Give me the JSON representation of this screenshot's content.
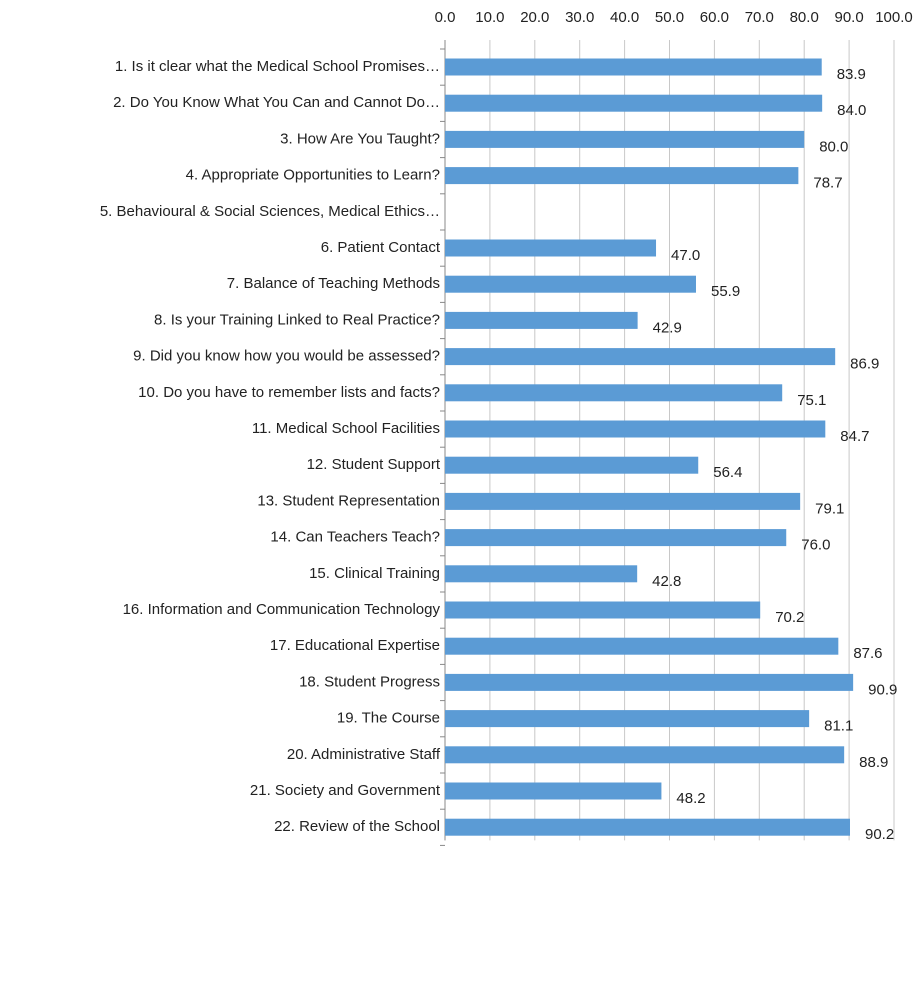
{
  "chart_data": {
    "type": "barh",
    "categories": [
      "1. Is it clear what the Medical School Promises…",
      "2. Do You Know What You Can and Cannot Do…",
      "3. How Are You Taught?",
      "4. Appropriate Opportunities to Learn?",
      "5. Behavioural & Social Sciences,  Medical Ethics…",
      "6. Patient Contact",
      "7. Balance of Teaching Methods",
      "8. Is your Training Linked to Real Practice?",
      "9. Did you know how you would be assessed?",
      "10. Do you have to remember lists and facts?",
      "11. Medical School Facilities",
      "12. Student Support",
      "13. Student Representation",
      "14. Can Teachers Teach?",
      "15. Clinical Training",
      "16. Information and Communication Technology",
      "17. Educational Expertise",
      "18. Student Progress",
      "19. The Course",
      "20. Administrative Staff",
      "21. Society and Government",
      "22. Review of the School"
    ],
    "values": [
      83.9,
      84.0,
      80.0,
      78.7,
      null,
      47.0,
      55.9,
      42.9,
      86.9,
      75.1,
      84.7,
      56.4,
      79.1,
      76.0,
      42.8,
      70.2,
      87.6,
      90.9,
      81.1,
      88.9,
      48.2,
      90.2
    ],
    "value_labels": [
      "83.9",
      "84.0",
      "80.0",
      "78.7",
      null,
      "47.0",
      "55.9",
      "42.9",
      "86.9",
      "75.1",
      "84.7",
      "56.4",
      "79.1",
      "76.0",
      "42.8",
      "70.2",
      "87.6",
      "90.9",
      "81.1",
      "88.9",
      "48.2",
      "90.2"
    ],
    "color": "#5b9bd5",
    "xlim": [
      0,
      100
    ],
    "xticks": [
      {
        "value": 0,
        "label": "0.0"
      },
      {
        "value": 10,
        "label": "10.0"
      },
      {
        "value": 20,
        "label": "20.0"
      },
      {
        "value": 30,
        "label": "30.0"
      },
      {
        "value": 40,
        "label": "40.0"
      },
      {
        "value": 50,
        "label": "50.0"
      },
      {
        "value": 60,
        "label": "60.0"
      },
      {
        "value": 70,
        "label": "70.0"
      },
      {
        "value": 80,
        "label": "80.0"
      },
      {
        "value": 90,
        "label": "90.0"
      },
      {
        "value": 100,
        "label": "100.0"
      }
    ],
    "grid": true
  }
}
